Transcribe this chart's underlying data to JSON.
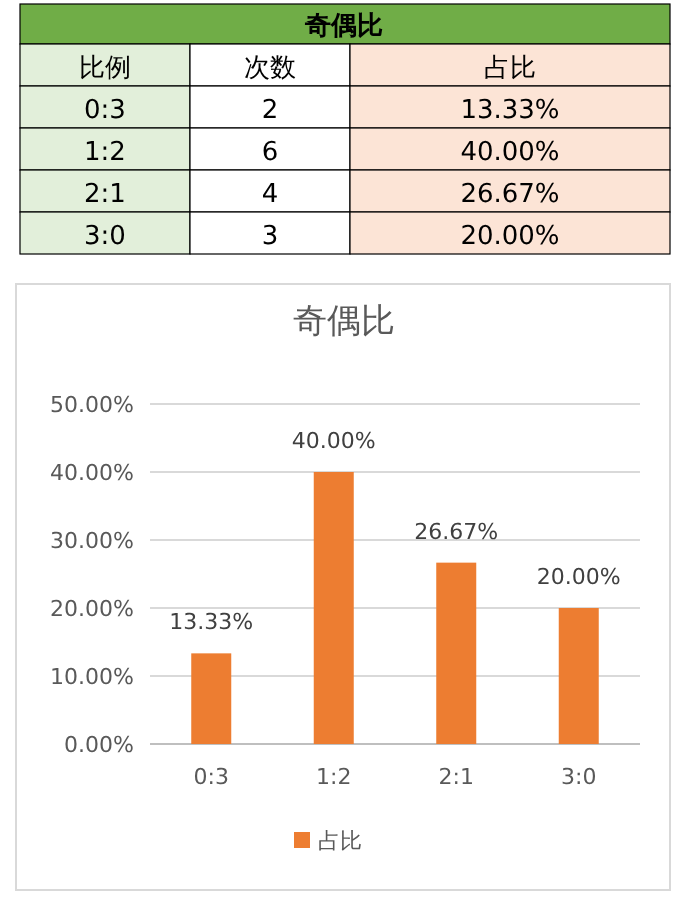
{
  "chart_data": [
    {
      "type": "other",
      "title": "奇偶比",
      "annotations": [
        "比例",
        "次数",
        "占比",
        "0:3",
        "2",
        "13.33%",
        "1:2",
        "6",
        "40.00%",
        "2:1",
        "4",
        "26.67%",
        "3:0",
        "3",
        "20.00%"
      ]
    },
    {
      "type": "bar",
      "title": "奇偶比",
      "categories": [
        "0:3",
        "1:2",
        "2:1",
        "3:0"
      ],
      "series": [
        {
          "name": "占比",
          "color": "#ed7d31",
          "values": [
            13.33,
            40,
            26.67,
            20
          ],
          "value_labels": [
            "13.33%",
            "40.00%",
            "26.67%",
            "20.00%"
          ]
        }
      ],
      "ylim": [
        0,
        50
      ],
      "yticks": [
        {
          "value": 0,
          "label": "0.00%"
        },
        {
          "value": 10,
          "label": "10.00%"
        },
        {
          "value": 20,
          "label": "20.00%"
        },
        {
          "value": 30,
          "label": "30.00%"
        },
        {
          "value": 40,
          "label": "40.00%"
        },
        {
          "value": 50,
          "label": "50.00%"
        }
      ],
      "grid": "y",
      "legend": "bottom"
    }
  ]
}
